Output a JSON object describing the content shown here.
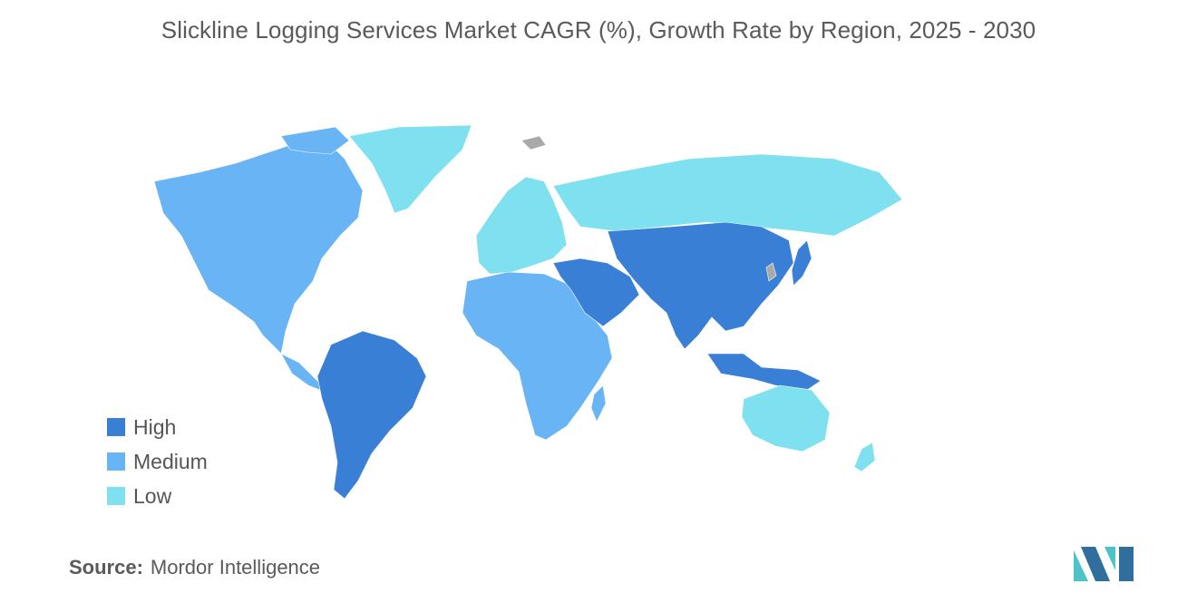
{
  "title": "Slickline Logging Services Market CAGR (%), Growth Rate by Region, 2025 - 2030",
  "legend": [
    {
      "label": "High",
      "color": "#3a7fd6"
    },
    {
      "label": "Medium",
      "color": "#68b4f5"
    },
    {
      "label": "Low",
      "color": "#7fe0ef"
    }
  ],
  "colors": {
    "no_data": "#a9a9a9",
    "logo_dark": "#2f6e9d",
    "logo_light": "#4cc3c7"
  },
  "source": {
    "label": "Source:",
    "value": "Mordor Intelligence"
  },
  "regions": [
    {
      "name": "North America",
      "level": "Medium"
    },
    {
      "name": "South America",
      "level": "High"
    },
    {
      "name": "Europe",
      "level": "Low"
    },
    {
      "name": "Africa",
      "level": "Medium"
    },
    {
      "name": "Middle East",
      "level": "High"
    },
    {
      "name": "Asia-Pacific",
      "level": "High"
    },
    {
      "name": "Russia",
      "level": "Low"
    },
    {
      "name": "Australia and New Zealand",
      "level": "Low"
    },
    {
      "name": "Greenland",
      "level": "Low"
    }
  ]
}
